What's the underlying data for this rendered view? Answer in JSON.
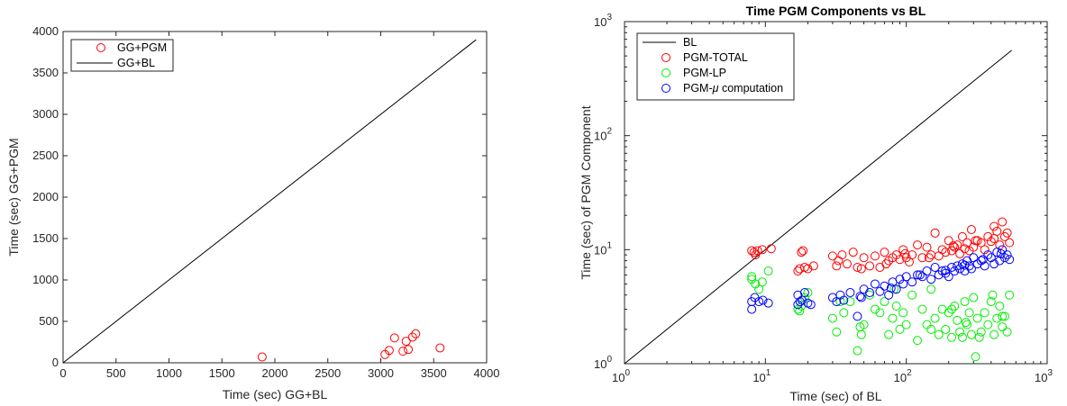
{
  "chart_data": [
    {
      "type": "scatter",
      "title": "",
      "xlabel": "Time (sec) GG+BL",
      "ylabel": "Time (sec) GG+PGM",
      "xlim": [
        0,
        4000
      ],
      "ylim": [
        0,
        4000
      ],
      "xticks": [
        "0",
        "500",
        "1000",
        "1500",
        "2000",
        "2500",
        "3000",
        "3500",
        "4000"
      ],
      "yticks": [
        "0",
        "500",
        "1000",
        "1500",
        "2000",
        "2500",
        "3000",
        "3500",
        "4000"
      ],
      "legend_position": "top-left",
      "series": [
        {
          "name": "GG+PGM",
          "kind": "markers",
          "color": "#ff0000",
          "x": [
            1880,
            3040,
            3080,
            3130,
            3210,
            3240,
            3260,
            3300,
            3330,
            3560
          ],
          "y": [
            70,
            100,
            150,
            300,
            140,
            260,
            160,
            310,
            350,
            180
          ]
        },
        {
          "name": "GG+BL",
          "kind": "line",
          "color": "#000000",
          "x": [
            0,
            3900
          ],
          "y": [
            0,
            3900
          ]
        }
      ]
    },
    {
      "type": "scatter",
      "title": "Time PGM Components vs BL",
      "xlabel": "Time (sec) of BL",
      "ylabel": "Time (sec) of PGM Component",
      "xscale": "log",
      "yscale": "log",
      "xlim": [
        1,
        1000
      ],
      "ylim": [
        1,
        1000
      ],
      "ticks": [
        {
          "base": "10",
          "exp": "0"
        },
        {
          "base": "10",
          "exp": "1"
        },
        {
          "base": "10",
          "exp": "2"
        },
        {
          "base": "10",
          "exp": "3"
        }
      ],
      "legend_position": "top-left",
      "series": [
        {
          "name": "BL",
          "kind": "line",
          "color": "#000000",
          "x": [
            1,
            560
          ],
          "y": [
            1,
            560
          ]
        },
        {
          "name": "PGM-TOTAL",
          "kind": "markers",
          "color": "#ff0000",
          "x": [
            8,
            8.3,
            8.8,
            9.5,
            11,
            17,
            17.5,
            18,
            19,
            20,
            22,
            30,
            32,
            35,
            38,
            42,
            45,
            50,
            55,
            60,
            65,
            70,
            75,
            80,
            85,
            90,
            95,
            100,
            105,
            110,
            120,
            130,
            140,
            150,
            160,
            170,
            180,
            190,
            200,
            210,
            220,
            230,
            240,
            250,
            260,
            270,
            280,
            290,
            300,
            320,
            340,
            360,
            380,
            400,
            420,
            440,
            460,
            480,
            500,
            520,
            540,
            8.5,
            18.5,
            33,
            48,
            72,
            98,
            145,
            215,
            310,
            420
          ],
          "y": [
            9.8,
            9.5,
            9.8,
            10,
            10.2,
            6.5,
            6.8,
            9.5,
            7,
            6.8,
            7.2,
            8.8,
            7.2,
            9,
            7.5,
            9.5,
            7,
            8.5,
            7.2,
            8.8,
            7,
            9.5,
            8,
            8.5,
            9,
            8.2,
            10,
            8.5,
            7.8,
            9,
            11,
            8.5,
            10.5,
            9,
            14,
            8.8,
            10,
            9.5,
            12,
            9.8,
            10.5,
            11,
            9.2,
            13,
            10.2,
            11.5,
            9.8,
            15,
            10.5,
            12,
            11.5,
            10,
            13,
            11.8,
            12.5,
            14.5,
            11,
            17.5,
            13,
            14,
            11.5,
            9,
            9.8,
            8,
            6.8,
            7.5,
            9.2,
            8.5,
            10.8,
            12,
            16
          ]
        },
        {
          "name": "PGM-LP",
          "kind": "markers",
          "color": "#00ee00",
          "x": [
            8,
            8.5,
            9,
            9.5,
            10.5,
            17,
            18,
            19,
            20,
            30,
            32,
            34,
            36,
            40,
            45,
            48,
            50,
            55,
            60,
            65,
            70,
            75,
            80,
            85,
            90,
            95,
            100,
            110,
            120,
            130,
            140,
            150,
            160,
            170,
            180,
            190,
            200,
            210,
            220,
            230,
            240,
            250,
            260,
            270,
            280,
            290,
            300,
            310,
            320,
            340,
            360,
            380,
            400,
            420,
            440,
            460,
            480,
            500,
            520,
            540,
            8,
            17.5,
            47,
            82,
            150,
            210,
            265,
            330,
            410,
            480
          ],
          "y": [
            5.8,
            5,
            4.5,
            5.2,
            6.5,
            3,
            3.2,
            3.8,
            4.2,
            2.5,
            1.9,
            3.5,
            2.8,
            3.5,
            1.3,
            1.8,
            2.2,
            4,
            3,
            2.8,
            3.5,
            1.8,
            2.5,
            3.2,
            2,
            2.8,
            2.2,
            4,
            1.6,
            3,
            2.2,
            4.5,
            2.5,
            1.8,
            3,
            2,
            2.8,
            1.7,
            3.2,
            2.4,
            1.9,
            1.7,
            3.5,
            2.2,
            2.8,
            1.8,
            3.8,
            1.15,
            2.5,
            1.9,
            2.8,
            2.2,
            3.5,
            1.8,
            2.5,
            3.2,
            2.1,
            2.6,
            1.9,
            4,
            5.5,
            2.9,
            2.1,
            4.5,
            2,
            3,
            2.3,
            1.7,
            4,
            2.6
          ]
        },
        {
          "name": "PGM-μ computation",
          "kind": "markers",
          "color": "#0000ff",
          "x": [
            8,
            8.4,
            9,
            9.6,
            10.5,
            17,
            17.6,
            18.2,
            19,
            20,
            21,
            30,
            32,
            34,
            36,
            40,
            45,
            48,
            50,
            55,
            60,
            65,
            70,
            75,
            80,
            85,
            90,
            95,
            100,
            110,
            120,
            130,
            140,
            150,
            160,
            170,
            180,
            190,
            200,
            210,
            220,
            230,
            240,
            250,
            260,
            270,
            280,
            290,
            300,
            320,
            340,
            360,
            380,
            400,
            420,
            440,
            460,
            480,
            500,
            520,
            540,
            8,
            17,
            47,
            78,
            125,
            190,
            260,
            350,
            470
          ],
          "y": [
            3.5,
            3.8,
            3.5,
            3.6,
            3.4,
            3.3,
            3.5,
            3.6,
            4.2,
            3.4,
            3.3,
            3.8,
            3.5,
            4,
            3.6,
            4.2,
            2.6,
            3.8,
            4.5,
            4.2,
            5,
            4.3,
            4.8,
            4,
            5.2,
            4.5,
            5.5,
            5,
            5.8,
            5.2,
            6,
            5.8,
            6.5,
            5.5,
            7,
            6,
            6.5,
            6.2,
            5.8,
            7,
            6.5,
            7.2,
            6.8,
            7.5,
            6.5,
            8,
            7.2,
            6.8,
            8.5,
            7.5,
            8,
            7.2,
            9,
            8.5,
            7.5,
            9.5,
            8,
            10,
            8.5,
            9,
            8.2,
            3,
            4,
            3.9,
            4.6,
            6,
            6.6,
            7.3,
            8.2,
            9.2
          ]
        }
      ]
    }
  ]
}
